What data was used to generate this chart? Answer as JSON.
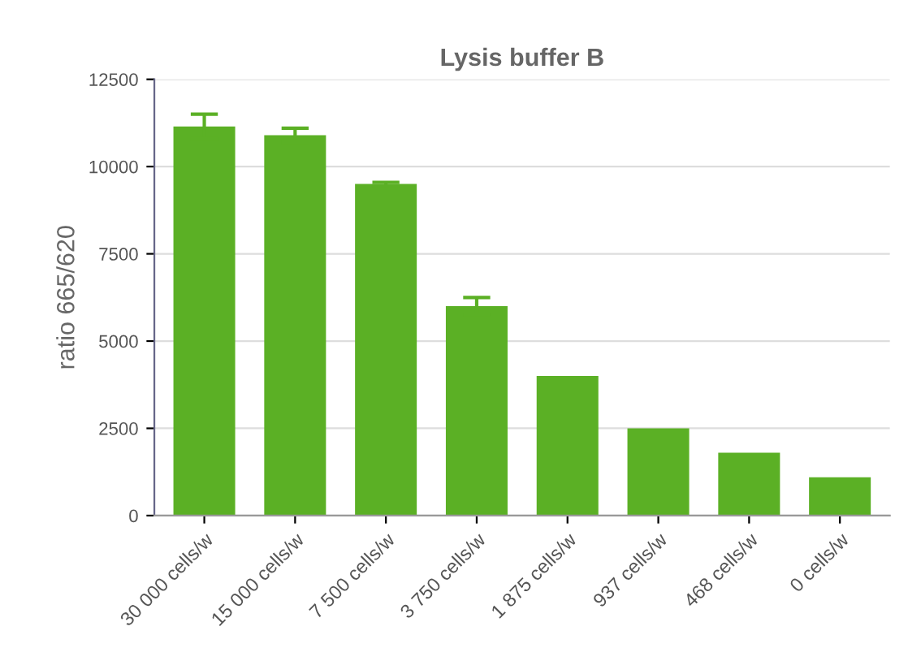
{
  "chart_data": {
    "type": "bar",
    "title": "Lysis buffer B",
    "ylabel": "ratio 665/620",
    "categories": [
      "30 000 cells/w",
      "15 000 cells/w",
      "7 500 cells/w",
      "3 750 cells/w",
      "1 875 cells/w",
      "937 cells/w",
      "468 cells/w",
      "0 cells/w"
    ],
    "values": [
      11150,
      10900,
      9500,
      6000,
      4000,
      2500,
      1800,
      1100
    ],
    "errors": [
      350,
      200,
      50,
      250,
      null,
      null,
      null,
      null
    ],
    "color": "#5bb025",
    "ylim": [
      0,
      12500
    ],
    "yticks": [
      0,
      2500,
      5000,
      7500,
      10000,
      12500
    ],
    "grid": "y"
  }
}
